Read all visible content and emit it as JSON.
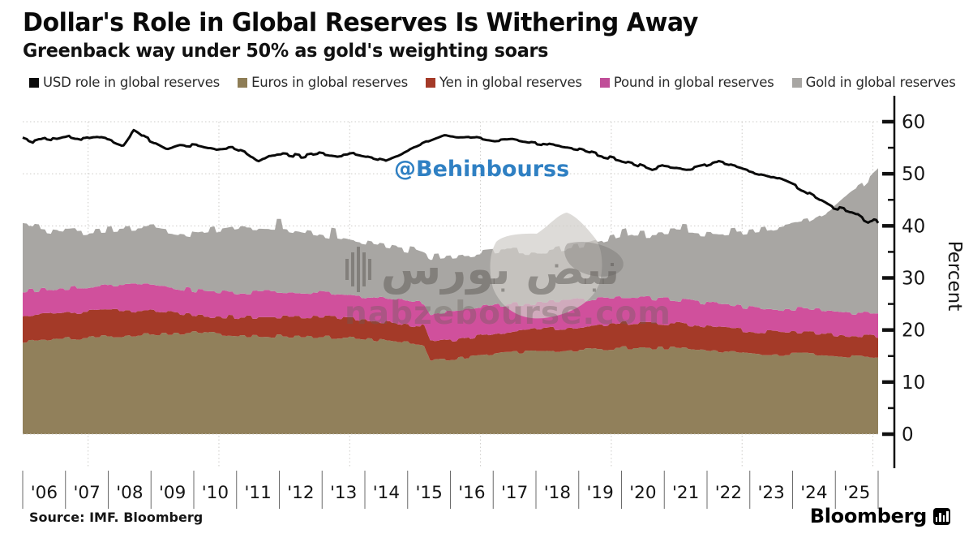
{
  "header": {
    "title": "Dollar's Role in Global Reserves Is Withering Away",
    "subtitle": "Greenback way under 50% as gold's weighting soars"
  },
  "legend": {
    "items": [
      {
        "label": "USD role in global reserves",
        "color": "#0a0a0a"
      },
      {
        "label": "Euros in global reserves",
        "color": "#8E7D56"
      },
      {
        "label": "Yen in global reserves",
        "color": "#A43A28"
      },
      {
        "label": "Pound in global reserves",
        "color": "#C04E98"
      },
      {
        "label": "Gold in global reserves",
        "color": "#A8A6A3"
      }
    ]
  },
  "watermarks": {
    "handle": "@Behinbourss",
    "handle_color": "#2f80c3",
    "persian": "نبض بورس",
    "domain": "nabzebourse.com"
  },
  "footer": {
    "source": "Source: IMF. Bloomberg",
    "brand": "Bloomberg"
  },
  "chart_data": {
    "type": "area",
    "title": "Dollar's Role in Global Reserves Is Withering Away",
    "subtitle": "Greenback way under 50% as gold's weighting soars",
    "xlabel": "",
    "ylabel": "Percent",
    "ylim": [
      0,
      62
    ],
    "yticks": [
      0,
      10,
      20,
      30,
      40,
      50,
      60
    ],
    "y_minor_ticks": [
      5,
      15,
      25,
      35,
      45,
      55
    ],
    "x_labels": [
      "'06",
      "'07",
      "'08",
      "'09",
      "'10",
      "'11",
      "'12",
      "'13",
      "'14",
      "'15",
      "'16",
      "'17",
      "'18",
      "'19",
      "'20",
      "'21",
      "'22",
      "'23",
      "'24",
      "'25"
    ],
    "x_range": [
      2006.0,
      2025.62
    ],
    "grid": "dotted, horizontal every 10, vertical every 3 years",
    "legend_position": "top",
    "stacking_note": "area series are stacked shares (percent); usd series is an unstacked line",
    "x": [
      2006,
      2007,
      2008,
      2009,
      2010,
      2011,
      2012,
      2013,
      2014,
      2015,
      2015.2,
      2015.35,
      2016,
      2017,
      2018,
      2019,
      2020,
      2021,
      2022,
      2023,
      2024,
      2024.5,
      2025,
      2025.3,
      2025.62
    ],
    "series": [
      {
        "name": "Euros in global reserves",
        "type": "area",
        "color": "#91805B",
        "values": [
          17.8,
          18.3,
          18.8,
          19.3,
          19.5,
          19.0,
          18.8,
          18.6,
          18.2,
          17.4,
          17.3,
          14.2,
          14.6,
          15.6,
          15.9,
          16.2,
          16.6,
          16.5,
          16.0,
          15.3,
          15.4,
          15.2,
          14.8,
          14.7,
          14.5
        ]
      },
      {
        "name": "Yen in global reserves",
        "type": "area",
        "color": "#A43A28",
        "values": [
          4.7,
          4.9,
          5.0,
          4.3,
          3.3,
          3.4,
          3.8,
          3.8,
          3.6,
          3.5,
          3.5,
          3.6,
          3.6,
          4.0,
          4.3,
          4.6,
          4.8,
          4.7,
          4.3,
          4.3,
          4.1,
          4.0,
          4.2,
          4.2,
          4.2
        ]
      },
      {
        "name": "Pound in global reserves",
        "type": "area",
        "color": "#D0509C",
        "values": [
          4.9,
          4.9,
          5.0,
          5.0,
          4.8,
          4.8,
          4.8,
          4.7,
          4.6,
          4.5,
          4.5,
          5.4,
          5.6,
          5.2,
          5.1,
          5.0,
          4.8,
          4.7,
          4.6,
          4.6,
          4.5,
          4.4,
          4.3,
          4.2,
          4.3
        ]
      },
      {
        "name": "Gold in global reserves",
        "type": "area",
        "color": "#A8A6A3",
        "values": [
          12.4,
          10.7,
          10.4,
          11.0,
          10.8,
          12.6,
          12.2,
          11.1,
          10.2,
          9.9,
          9.4,
          10.6,
          10.4,
          10.4,
          9.7,
          10.6,
          12.4,
          12.9,
          13.5,
          15.0,
          16.6,
          19.2,
          23.2,
          24.9,
          27.8
        ]
      }
    ],
    "line_series": {
      "name": "USD role in global reserves",
      "type": "line",
      "color": "#0a0a0a",
      "points": [
        [
          2006.0,
          57.0
        ],
        [
          2006.25,
          56.2
        ],
        [
          2006.5,
          56.9
        ],
        [
          2006.8,
          56.5
        ],
        [
          2007.1,
          57.2
        ],
        [
          2007.4,
          56.6
        ],
        [
          2007.7,
          57.1
        ],
        [
          2008.0,
          56.6
        ],
        [
          2008.3,
          55.5
        ],
        [
          2008.55,
          58.5
        ],
        [
          2008.8,
          56.9
        ],
        [
          2009.0,
          56.2
        ],
        [
          2009.3,
          54.9
        ],
        [
          2009.6,
          55.7
        ],
        [
          2010.0,
          55.4
        ],
        [
          2010.4,
          54.7
        ],
        [
          2010.8,
          55.1
        ],
        [
          2011.1,
          54.1
        ],
        [
          2011.4,
          52.3
        ],
        [
          2011.7,
          53.7
        ],
        [
          2012.0,
          53.9
        ],
        [
          2012.4,
          53.3
        ],
        [
          2012.8,
          53.9
        ],
        [
          2013.2,
          53.4
        ],
        [
          2013.6,
          53.8
        ],
        [
          2014.0,
          53.1
        ],
        [
          2014.3,
          52.5
        ],
        [
          2014.6,
          53.5
        ],
        [
          2015.0,
          55.1
        ],
        [
          2015.3,
          56.2
        ],
        [
          2015.7,
          57.5
        ],
        [
          2016.0,
          56.9
        ],
        [
          2016.4,
          57.1
        ],
        [
          2016.8,
          56.5
        ],
        [
          2017.2,
          56.8
        ],
        [
          2017.6,
          56.1
        ],
        [
          2018.0,
          55.7
        ],
        [
          2018.4,
          55.1
        ],
        [
          2018.8,
          54.6
        ],
        [
          2019.2,
          53.6
        ],
        [
          2019.6,
          52.9
        ],
        [
          2020.0,
          52.1
        ],
        [
          2020.4,
          50.9
        ],
        [
          2020.7,
          51.6
        ],
        [
          2021.0,
          51.3
        ],
        [
          2021.3,
          50.9
        ],
        [
          2021.6,
          51.5
        ],
        [
          2021.9,
          52.3
        ],
        [
          2022.2,
          51.7
        ],
        [
          2022.5,
          51.0
        ],
        [
          2022.8,
          50.3
        ],
        [
          2023.1,
          49.7
        ],
        [
          2023.4,
          48.9
        ],
        [
          2023.7,
          47.8
        ],
        [
          2024.0,
          46.4
        ],
        [
          2024.3,
          45.0
        ],
        [
          2024.6,
          43.6
        ],
        [
          2024.9,
          43.0
        ],
        [
          2025.1,
          42.4
        ],
        [
          2025.3,
          41.2
        ],
        [
          2025.45,
          40.6
        ],
        [
          2025.55,
          41.2
        ],
        [
          2025.62,
          40.3
        ]
      ]
    }
  }
}
